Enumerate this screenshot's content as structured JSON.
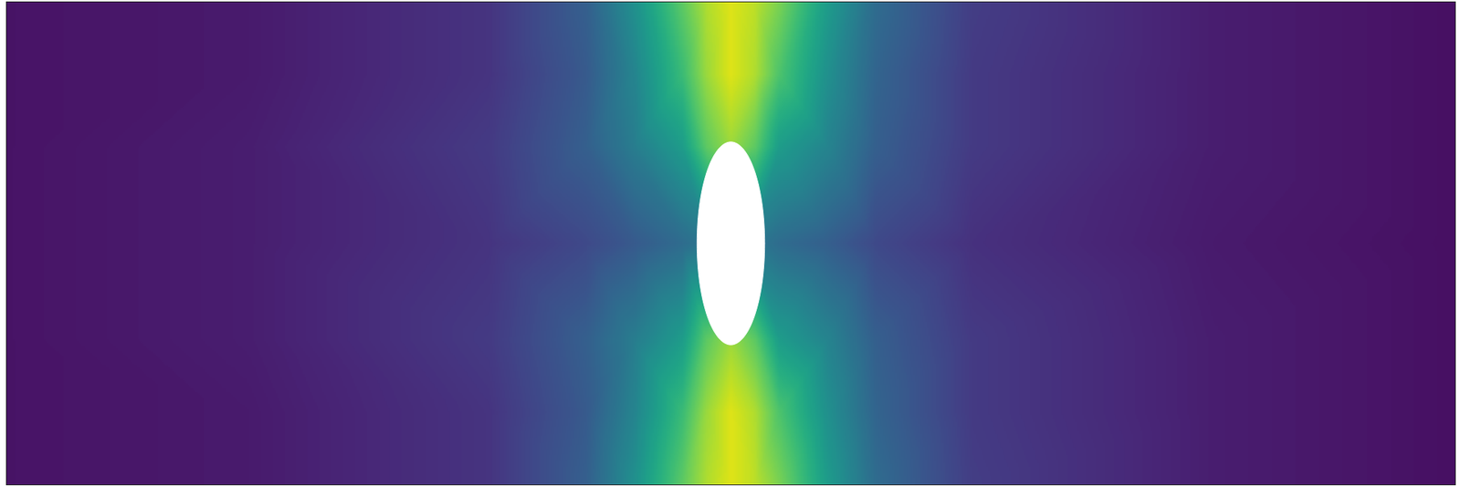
{
  "chart_data": {
    "type": "heatmap",
    "color": "viridis",
    "tick_labels": false,
    "xlim": [
      0,
      3
    ],
    "ylim": [
      0,
      1
    ],
    "x": [
      0,
      0.5,
      1.0,
      1.2,
      1.3,
      1.4,
      1.45,
      1.5,
      1.55,
      1.6,
      1.7,
      1.8,
      2.0,
      2.5,
      3.0
    ],
    "y": [
      0,
      0.15,
      0.3,
      0.5,
      0.7,
      0.85,
      1.0
    ],
    "cells": [
      [
        0.05,
        0.07,
        0.15,
        0.3,
        0.5,
        0.75,
        0.88,
        0.95,
        0.9,
        0.8,
        0.55,
        0.35,
        0.18,
        0.08,
        0.04
      ],
      [
        0.05,
        0.07,
        0.15,
        0.28,
        0.45,
        0.68,
        0.85,
        0.95,
        0.88,
        0.72,
        0.5,
        0.32,
        0.17,
        0.08,
        0.04
      ],
      [
        0.05,
        0.08,
        0.17,
        0.3,
        0.42,
        0.55,
        0.75,
        0.85,
        0.75,
        0.55,
        0.45,
        0.3,
        0.17,
        0.08,
        0.04
      ],
      [
        0.05,
        0.08,
        0.15,
        0.22,
        0.28,
        0.35,
        0.4,
        0.4,
        0.4,
        0.35,
        0.3,
        0.22,
        0.14,
        0.07,
        0.04
      ],
      [
        0.05,
        0.08,
        0.17,
        0.3,
        0.42,
        0.55,
        0.75,
        0.85,
        0.75,
        0.55,
        0.45,
        0.3,
        0.17,
        0.08,
        0.04
      ],
      [
        0.05,
        0.07,
        0.15,
        0.28,
        0.45,
        0.68,
        0.85,
        0.95,
        0.88,
        0.72,
        0.5,
        0.32,
        0.17,
        0.08,
        0.04
      ],
      [
        0.05,
        0.07,
        0.15,
        0.3,
        0.5,
        0.75,
        0.88,
        0.95,
        0.9,
        0.8,
        0.55,
        0.35,
        0.18,
        0.08,
        0.04
      ]
    ],
    "color_range": [
      0,
      1
    ],
    "obstacle": {
      "cx": 1.5,
      "cy": 0.5,
      "rx": 0.07,
      "ry": 0.21
    }
  }
}
